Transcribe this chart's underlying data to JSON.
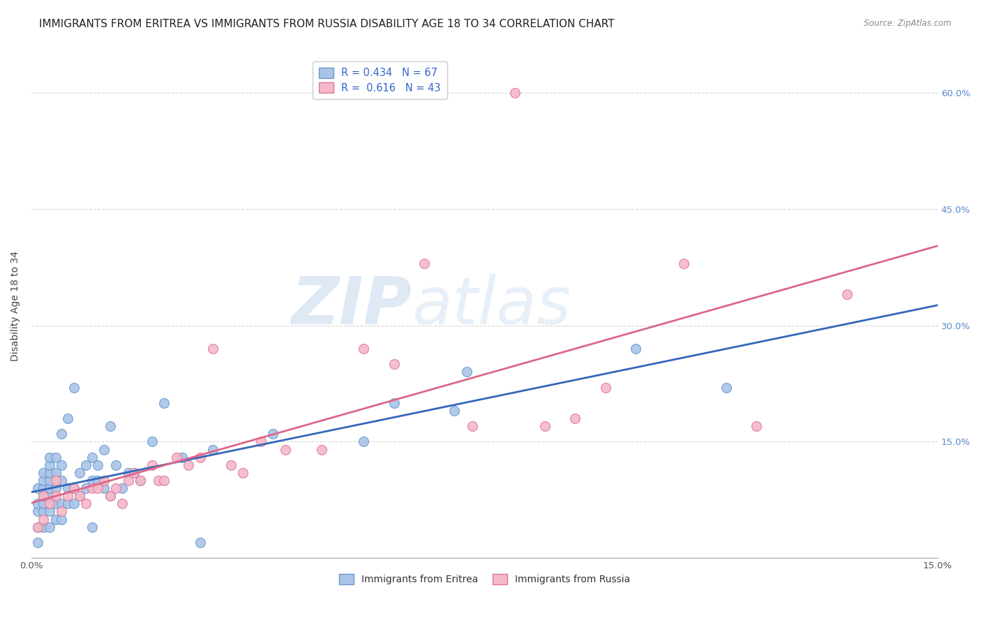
{
  "title": "IMMIGRANTS FROM ERITREA VS IMMIGRANTS FROM RUSSIA DISABILITY AGE 18 TO 34 CORRELATION CHART",
  "source": "Source: ZipAtlas.com",
  "ylabel": "Disability Age 18 to 34",
  "xlim": [
    0.0,
    0.15
  ],
  "ylim": [
    0.0,
    0.65
  ],
  "background_color": "#ffffff",
  "grid_color": "#cccccc",
  "title_fontsize": 11,
  "axis_label_fontsize": 10,
  "tick_fontsize": 9.5,
  "watermark_zip": "ZIP",
  "watermark_atlas": "atlas",
  "series": [
    {
      "name": "Immigrants from Eritrea",
      "color": "#aac4e8",
      "edge_color": "#6699cc",
      "R": 0.434,
      "N": 67,
      "line_color": "#3366bb",
      "x": [
        0.001,
        0.001,
        0.001,
        0.001,
        0.001,
        0.002,
        0.002,
        0.002,
        0.002,
        0.002,
        0.002,
        0.002,
        0.003,
        0.003,
        0.003,
        0.003,
        0.003,
        0.003,
        0.003,
        0.003,
        0.003,
        0.004,
        0.004,
        0.004,
        0.004,
        0.004,
        0.005,
        0.005,
        0.005,
        0.005,
        0.005,
        0.006,
        0.006,
        0.006,
        0.007,
        0.007,
        0.007,
        0.008,
        0.008,
        0.009,
        0.009,
        0.01,
        0.01,
        0.01,
        0.011,
        0.011,
        0.012,
        0.012,
        0.013,
        0.013,
        0.014,
        0.015,
        0.016,
        0.017,
        0.018,
        0.02,
        0.022,
        0.025,
        0.028,
        0.03,
        0.04,
        0.055,
        0.06,
        0.07,
        0.072,
        0.1,
        0.115
      ],
      "y": [
        0.02,
        0.04,
        0.06,
        0.07,
        0.09,
        0.04,
        0.06,
        0.07,
        0.08,
        0.09,
        0.1,
        0.11,
        0.04,
        0.06,
        0.07,
        0.08,
        0.09,
        0.1,
        0.11,
        0.12,
        0.13,
        0.05,
        0.07,
        0.09,
        0.11,
        0.13,
        0.05,
        0.07,
        0.1,
        0.12,
        0.16,
        0.07,
        0.09,
        0.18,
        0.07,
        0.09,
        0.22,
        0.08,
        0.11,
        0.09,
        0.12,
        0.04,
        0.1,
        0.13,
        0.1,
        0.12,
        0.09,
        0.14,
        0.08,
        0.17,
        0.12,
        0.09,
        0.11,
        0.11,
        0.1,
        0.15,
        0.2,
        0.13,
        0.02,
        0.14,
        0.16,
        0.15,
        0.2,
        0.19,
        0.24,
        0.27,
        0.22
      ]
    },
    {
      "name": "Immigrants from Russia",
      "color": "#f5b8c8",
      "edge_color": "#dd7799",
      "R": 0.616,
      "N": 43,
      "line_color": "#dd6688",
      "x": [
        0.001,
        0.002,
        0.002,
        0.003,
        0.004,
        0.004,
        0.005,
        0.006,
        0.007,
        0.008,
        0.009,
        0.01,
        0.011,
        0.012,
        0.013,
        0.014,
        0.015,
        0.016,
        0.017,
        0.018,
        0.02,
        0.021,
        0.022,
        0.024,
        0.026,
        0.028,
        0.03,
        0.033,
        0.035,
        0.038,
        0.042,
        0.048,
        0.055,
        0.06,
        0.065,
        0.073,
        0.08,
        0.085,
        0.09,
        0.095,
        0.108,
        0.12,
        0.135
      ],
      "y": [
        0.04,
        0.05,
        0.08,
        0.07,
        0.08,
        0.1,
        0.06,
        0.08,
        0.09,
        0.08,
        0.07,
        0.09,
        0.09,
        0.1,
        0.08,
        0.09,
        0.07,
        0.1,
        0.11,
        0.1,
        0.12,
        0.1,
        0.1,
        0.13,
        0.12,
        0.13,
        0.27,
        0.12,
        0.11,
        0.15,
        0.14,
        0.14,
        0.27,
        0.25,
        0.38,
        0.17,
        0.6,
        0.17,
        0.18,
        0.22,
        0.38,
        0.17,
        0.34
      ]
    }
  ]
}
